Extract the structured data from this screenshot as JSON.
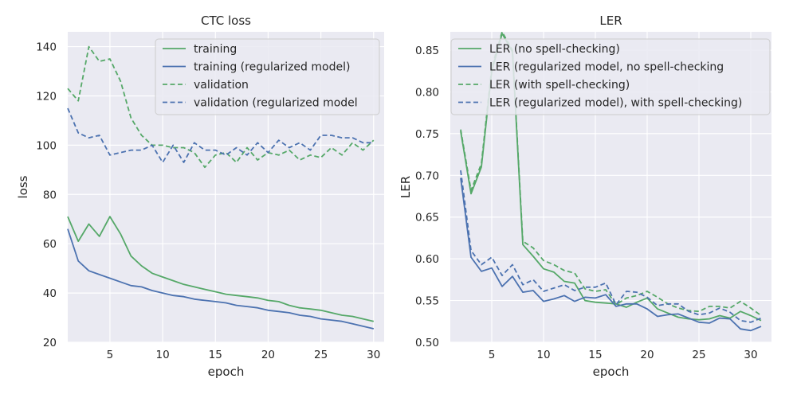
{
  "chart_data": [
    {
      "type": "line",
      "title": "CTC loss",
      "xlabel": "epoch",
      "ylabel": "loss",
      "xlim": [
        1,
        31
      ],
      "ylim": [
        20,
        146
      ],
      "xticks": [
        5,
        10,
        15,
        20,
        25,
        30
      ],
      "yticks": [
        20,
        40,
        60,
        80,
        100,
        120,
        140
      ],
      "grid": true,
      "legend_position": "top-right",
      "x": [
        1,
        2,
        3,
        4,
        5,
        6,
        7,
        8,
        9,
        10,
        11,
        12,
        13,
        14,
        15,
        16,
        17,
        18,
        19,
        20,
        21,
        22,
        23,
        24,
        25,
        26,
        27,
        28,
        29,
        30
      ],
      "series": [
        {
          "name": "training",
          "color": "#55a868",
          "dash": "solid",
          "values": [
            71,
            61,
            68,
            63,
            71,
            64,
            55,
            51,
            48,
            46.5,
            45,
            43.5,
            42.5,
            41.5,
            40.5,
            39.5,
            39,
            38.5,
            38,
            37,
            36.5,
            35,
            34,
            33.5,
            33,
            32,
            31,
            30.5,
            29.5,
            28.5
          ]
        },
        {
          "name": "training (regularized model)",
          "color": "#4c72b0",
          "dash": "solid",
          "values": [
            66,
            53,
            49,
            47.5,
            46,
            44.5,
            43,
            42.5,
            41,
            40,
            39,
            38.5,
            37.5,
            37,
            36.5,
            36,
            35,
            34.5,
            34,
            33,
            32.5,
            32,
            31,
            30.5,
            29.5,
            29,
            28.5,
            27.5,
            26.5,
            25.5
          ]
        },
        {
          "name": "validation",
          "color": "#55a868",
          "dash": "dashed",
          "values": [
            123,
            118,
            140,
            134,
            135,
            126,
            111,
            104,
            100,
            100,
            99,
            99,
            97,
            91,
            96,
            97,
            93,
            99,
            94,
            97,
            96,
            98,
            94,
            96,
            95,
            99,
            96,
            101,
            98,
            102
          ]
        },
        {
          "name": "validation (regularized model",
          "color": "#4c72b0",
          "dash": "dashed",
          "values": [
            115,
            105,
            103,
            104,
            96,
            97,
            98,
            98,
            100,
            93,
            100,
            93,
            101,
            98,
            98,
            96,
            99,
            96,
            101,
            97,
            102,
            99,
            101,
            98,
            104,
            104,
            103,
            103,
            101,
            101
          ]
        }
      ]
    },
    {
      "type": "line",
      "title": "LER",
      "xlabel": "epoch",
      "ylabel": "LER",
      "xlim": [
        1,
        32
      ],
      "ylim": [
        0.5,
        0.872
      ],
      "xticks": [
        5,
        10,
        15,
        20,
        25,
        30
      ],
      "yticks": [
        0.5,
        0.55,
        0.6,
        0.65,
        0.7,
        0.75,
        0.8,
        0.85
      ],
      "grid": true,
      "legend_position": "top-right",
      "x": [
        2,
        3,
        4,
        5,
        6,
        7,
        8,
        9,
        10,
        11,
        12,
        13,
        14,
        15,
        16,
        17,
        18,
        19,
        20,
        21,
        22,
        23,
        24,
        25,
        26,
        27,
        28,
        29,
        30,
        31
      ],
      "series": [
        {
          "name": "LER (no spell-checking)",
          "color": "#55a868",
          "dash": "solid",
          "values": [
            0.753,
            0.678,
            0.71,
            0.825,
            0.87,
            0.848,
            0.617,
            0.603,
            0.588,
            0.584,
            0.573,
            0.571,
            0.55,
            0.548,
            0.547,
            0.546,
            0.542,
            0.548,
            0.553,
            0.54,
            0.535,
            0.53,
            0.528,
            0.527,
            0.528,
            0.532,
            0.529,
            0.537,
            0.532,
            0.526
          ]
        },
        {
          "name": "LER (regularized model, no spell-checking",
          "color": "#4c72b0",
          "dash": "solid",
          "values": [
            0.697,
            0.602,
            0.585,
            0.589,
            0.567,
            0.579,
            0.56,
            0.562,
            0.549,
            0.552,
            0.556,
            0.549,
            0.554,
            0.553,
            0.557,
            0.543,
            0.546,
            0.546,
            0.54,
            0.531,
            0.533,
            0.534,
            0.529,
            0.524,
            0.523,
            0.529,
            0.528,
            0.516,
            0.514,
            0.519
          ]
        },
        {
          "name": "LER (with spell-checking)",
          "color": "#55a868",
          "dash": "dashed",
          "values": [
            0.755,
            0.682,
            0.714,
            0.829,
            0.872,
            0.85,
            0.621,
            0.613,
            0.598,
            0.593,
            0.586,
            0.583,
            0.564,
            0.561,
            0.563,
            0.545,
            0.553,
            0.556,
            0.561,
            0.554,
            0.546,
            0.541,
            0.538,
            0.537,
            0.543,
            0.543,
            0.541,
            0.549,
            0.541,
            0.532
          ]
        },
        {
          "name": "LER (regularized model), with spell-checking)",
          "color": "#4c72b0",
          "dash": "dashed",
          "values": [
            0.706,
            0.61,
            0.593,
            0.602,
            0.58,
            0.593,
            0.569,
            0.575,
            0.561,
            0.565,
            0.569,
            0.562,
            0.566,
            0.566,
            0.571,
            0.545,
            0.561,
            0.56,
            0.554,
            0.544,
            0.546,
            0.546,
            0.537,
            0.533,
            0.535,
            0.541,
            0.536,
            0.526,
            0.524,
            0.529
          ]
        }
      ]
    }
  ]
}
